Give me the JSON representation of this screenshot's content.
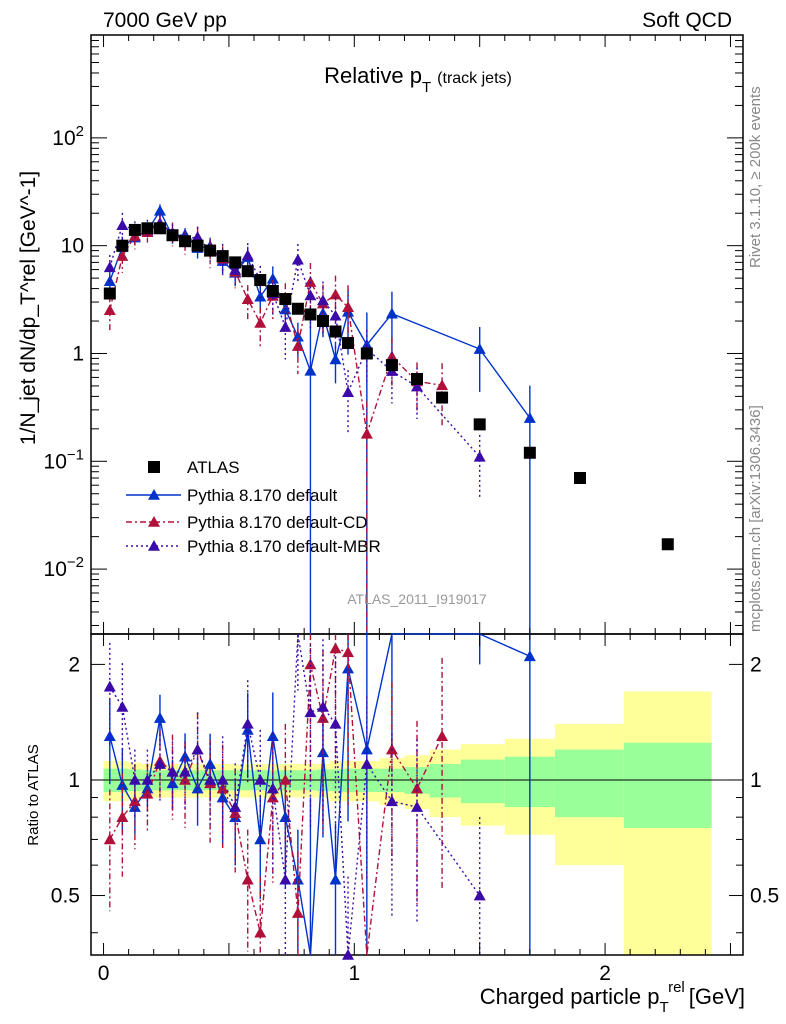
{
  "header": {
    "left": "7000 GeV pp",
    "right": "Soft QCD"
  },
  "side_labels": {
    "rivet": "Rivet 3.1.10, ≥ 200k events",
    "mcplots": "mcplots.cern.ch [arXiv:1306.3436]"
  },
  "colors": {
    "atlas": "#000000",
    "default": "#0033cc",
    "cd": "#b0103a",
    "mbr": "#3b0aa8",
    "band_inner": "#99ff99",
    "band_outer": "#ffff99"
  },
  "chart_data": {
    "type": "scatter",
    "title": "Relative p_T (track jets)",
    "title_main": "Relative p",
    "title_sub": "T",
    "title_extra": "(track jets)",
    "analysis_id": "ATLAS_2011_I919017",
    "xlabel": "Charged particle p_T^rel [GeV]",
    "xlabel_main": "Charged particle p",
    "xlabel_sub": "T",
    "xlabel_sup": "rel",
    "xlabel_unit": "[GeV]",
    "ylabel": "1/N_jet dN/dp_T^rel [GeV^-1]",
    "ylabel_ratio": "Ratio to ATLAS",
    "xlim": [
      -0.05,
      2.55
    ],
    "ylim": [
      0.0025,
      900
    ],
    "ratio_ylim": [
      0.35,
      2.4
    ],
    "xticks": [
      0,
      1,
      2
    ],
    "yticks": [
      {
        "v": 0.01,
        "base": "10",
        "exp": "−2"
      },
      {
        "v": 0.1,
        "base": "10",
        "exp": "−1"
      },
      {
        "v": 1,
        "base": "1",
        "exp": ""
      },
      {
        "v": 10,
        "base": "10",
        "exp": ""
      },
      {
        "v": 100,
        "base": "10",
        "exp": "2"
      }
    ],
    "ratio_yticks": [
      0.5,
      1,
      2
    ],
    "legend": [
      {
        "key": "atlas",
        "label": "ATLAS"
      },
      {
        "key": "default",
        "label": "Pythia 8.170 default"
      },
      {
        "key": "cd",
        "label": "Pythia 8.170 default-CD"
      },
      {
        "key": "mbr",
        "label": "Pythia 8.170 default-MBR"
      }
    ],
    "atlas": {
      "name": "ATLAS",
      "x": [
        0.025,
        0.075,
        0.125,
        0.175,
        0.225,
        0.275,
        0.325,
        0.375,
        0.425,
        0.475,
        0.525,
        0.575,
        0.625,
        0.675,
        0.725,
        0.775,
        0.825,
        0.875,
        0.925,
        0.975,
        1.05,
        1.15,
        1.25,
        1.35,
        1.5,
        1.7,
        1.9,
        2.25
      ],
      "y": [
        3.6,
        10,
        14,
        14.5,
        14.5,
        12.5,
        11,
        10,
        9,
        8,
        7,
        5.8,
        4.8,
        3.8,
        3.2,
        2.6,
        2.3,
        2.0,
        1.6,
        1.25,
        1.0,
        0.78,
        0.58,
        0.39,
        0.22,
        0.12,
        0.07,
        0.017
      ],
      "band_inner": [
        0.07,
        0.07,
        0.065,
        0.06,
        0.06,
        0.06,
        0.06,
        0.06,
        0.06,
        0.06,
        0.06,
        0.06,
        0.06,
        0.06,
        0.06,
        0.06,
        0.06,
        0.065,
        0.065,
        0.07,
        0.07,
        0.07,
        0.08,
        0.1,
        0.13,
        0.15,
        0.2,
        0.25
      ],
      "band_outer": [
        0.12,
        0.12,
        0.11,
        0.1,
        0.1,
        0.1,
        0.1,
        0.1,
        0.1,
        0.1,
        0.1,
        0.1,
        0.1,
        0.1,
        0.1,
        0.1,
        0.1,
        0.1,
        0.12,
        0.12,
        0.12,
        0.14,
        0.16,
        0.2,
        0.24,
        0.28,
        0.4,
        0.7
      ]
    },
    "series": [
      {
        "key": "default",
        "name": "Pythia 8.170 default",
        "ratio": [
          1.3,
          0.97,
          0.85,
          0.95,
          1.45,
          0.98,
          1.15,
          0.95,
          1.1,
          0.9,
          0.8,
          1.35,
          0.7,
          1.3,
          0.8,
          0.55,
          0.3,
          1.18,
          0.55,
          1.95,
          1.2,
          3.0,
          null,
          null,
          5.0,
          2.1,
          null,
          null
        ],
        "err_frac": [
          0.25,
          0.25,
          0.15,
          0.1,
          0.15,
          0.15,
          0.15,
          0.2,
          0.2,
          0.25,
          0.25,
          0.25,
          0.3,
          0.3,
          0.35,
          0.35,
          2.0,
          0.4,
          0.4,
          0.6,
          1.0,
          0.6,
          null,
          null,
          0.6,
          1.0,
          null,
          null
        ]
      },
      {
        "key": "cd",
        "name": "Pythia 8.170 default-CD",
        "ratio": [
          0.7,
          0.8,
          0.88,
          0.92,
          1.12,
          1.05,
          1.0,
          1.2,
          0.98,
          0.95,
          0.82,
          0.55,
          0.4,
          0.9,
          1.0,
          0.45,
          2.0,
          1.45,
          2.2,
          2.15,
          0.18,
          1.2,
          0.95,
          1.3,
          null,
          null,
          null,
          null
        ],
        "err_frac": [
          0.35,
          0.3,
          0.25,
          0.2,
          0.2,
          0.25,
          0.25,
          0.25,
          0.3,
          0.3,
          0.3,
          0.35,
          0.4,
          0.4,
          0.4,
          0.45,
          0.5,
          0.5,
          0.5,
          0.6,
          1.0,
          0.5,
          0.5,
          0.6,
          null,
          null,
          null,
          null
        ]
      },
      {
        "key": "mbr",
        "name": "Pythia 8.170 default-MBR",
        "ratio": [
          1.75,
          1.55,
          1.0,
          1.0,
          1.1,
          1.05,
          1.05,
          1.2,
          1.0,
          1.0,
          0.85,
          1.4,
          1.0,
          0.95,
          0.55,
          2.85,
          1.5,
          1.55,
          1.4,
          0.35,
          1.1,
          0.88,
          0.85,
          null,
          0.5,
          null,
          null,
          null
        ],
        "err_frac": [
          0.3,
          0.3,
          0.2,
          0.2,
          0.2,
          0.2,
          0.2,
          0.25,
          0.25,
          0.3,
          0.3,
          0.3,
          0.35,
          0.4,
          0.5,
          0.4,
          0.5,
          0.5,
          0.5,
          0.6,
          0.5,
          0.5,
          0.5,
          null,
          0.6,
          null,
          null,
          null
        ]
      }
    ]
  }
}
